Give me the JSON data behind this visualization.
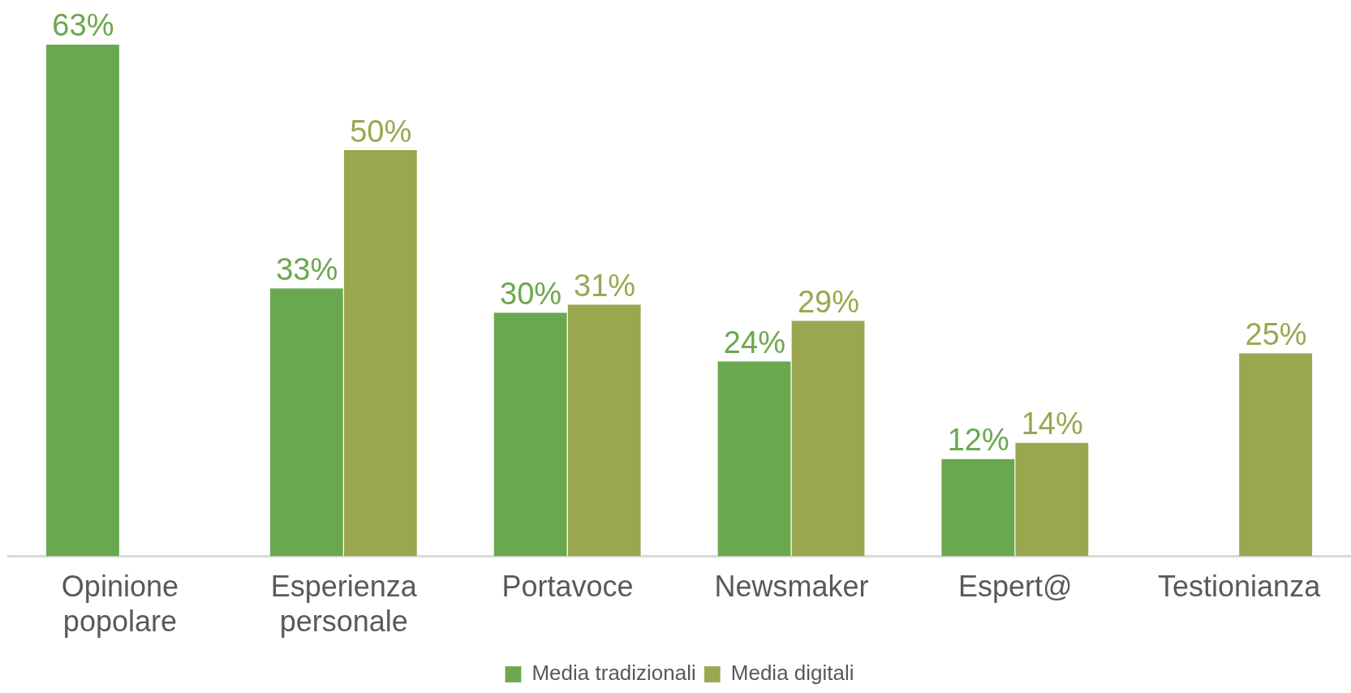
{
  "chart_data": {
    "type": "bar",
    "categories": [
      "Opinione popolare",
      "Esperienza personale",
      "Portavoce",
      "Newsmaker",
      "Espert@",
      "Testionianza"
    ],
    "series": [
      {
        "name": "Media tradizionali",
        "color": "#6aa84f",
        "values": [
          63,
          33,
          30,
          24,
          12,
          null
        ],
        "value_labels": [
          "63%",
          "33%",
          "30%",
          "24%",
          "12%",
          null
        ]
      },
      {
        "name": "Media digitali",
        "color": "#9ba74f",
        "values": [
          null,
          50,
          31,
          29,
          14,
          25
        ],
        "value_labels": [
          null,
          "50%",
          "31%",
          "29%",
          "14%",
          "25%"
        ]
      }
    ],
    "grid": false,
    "legend": "bottom"
  }
}
